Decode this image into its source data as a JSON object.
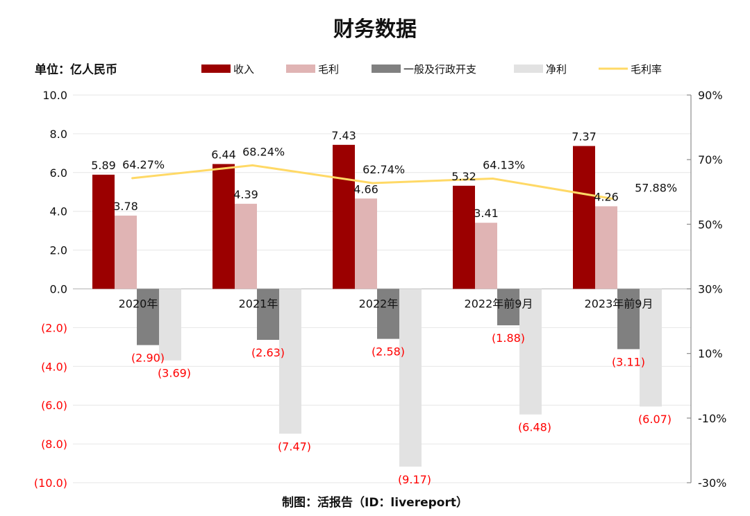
{
  "colors": {
    "revenue": "#9b0000",
    "gross_profit": "#e0b4b4",
    "ga_expense": "#808080",
    "net_profit": "#e2e2e2",
    "gross_margin": "#ffd966",
    "negative_label": "#ff0000"
  },
  "chart_data": {
    "type": "bar",
    "title": "财务数据",
    "unit_label": "单位：亿人民币",
    "categories": [
      "2020年",
      "2021年",
      "2022年",
      "2022年前9月",
      "2023年前9月"
    ],
    "series": [
      {
        "name": "收入",
        "type": "bar",
        "values": [
          5.89,
          6.44,
          7.43,
          5.32,
          7.37
        ],
        "labels": [
          "5.89",
          "6.44",
          "7.43",
          "5.32",
          "7.37"
        ]
      },
      {
        "name": "毛利",
        "type": "bar",
        "values": [
          3.78,
          4.39,
          4.66,
          3.41,
          4.26
        ],
        "labels": [
          "3.78",
          "4.39",
          "4.66",
          "3.41",
          "4.26"
        ]
      },
      {
        "name": "一般及行政开支",
        "type": "bar",
        "values": [
          -2.9,
          -2.63,
          -2.58,
          -1.88,
          -3.11
        ],
        "labels": [
          "(2.90)",
          "(2.63)",
          "(2.58)",
          "(1.88)",
          "(3.11)"
        ]
      },
      {
        "name": "净利",
        "type": "bar",
        "values": [
          -3.69,
          -7.47,
          -9.17,
          -6.48,
          -6.07
        ],
        "labels": [
          "(3.69)",
          "(7.47)",
          "(9.17)",
          "(6.48)",
          "(6.07)"
        ]
      },
      {
        "name": "毛利率",
        "type": "line",
        "axis": "right",
        "values": [
          64.27,
          68.24,
          62.74,
          64.13,
          57.88
        ],
        "labels": [
          "64.27%",
          "68.24%",
          "62.74%",
          "64.13%",
          "57.88%"
        ]
      }
    ],
    "y_left": {
      "min": -10,
      "max": 10,
      "ticks": [
        10,
        8,
        6,
        4,
        2,
        0,
        -2,
        -4,
        -6,
        -8,
        -10
      ],
      "tick_labels": [
        "10.0",
        "8.0",
        "6.0",
        "4.0",
        "2.0",
        "0.0",
        "(2.0)",
        "(4.0)",
        "(6.0)",
        "(8.0)",
        "(10.0)"
      ]
    },
    "y_right": {
      "min": -30,
      "max": 90,
      "ticks": [
        90,
        70,
        50,
        30,
        10,
        -10,
        -30
      ],
      "tick_labels": [
        "90%",
        "70%",
        "50%",
        "30%",
        "10%",
        "-10%",
        "-30%"
      ]
    },
    "grid": true,
    "legend_position": "top",
    "source": "制图：活报告（ID：livereport）"
  }
}
